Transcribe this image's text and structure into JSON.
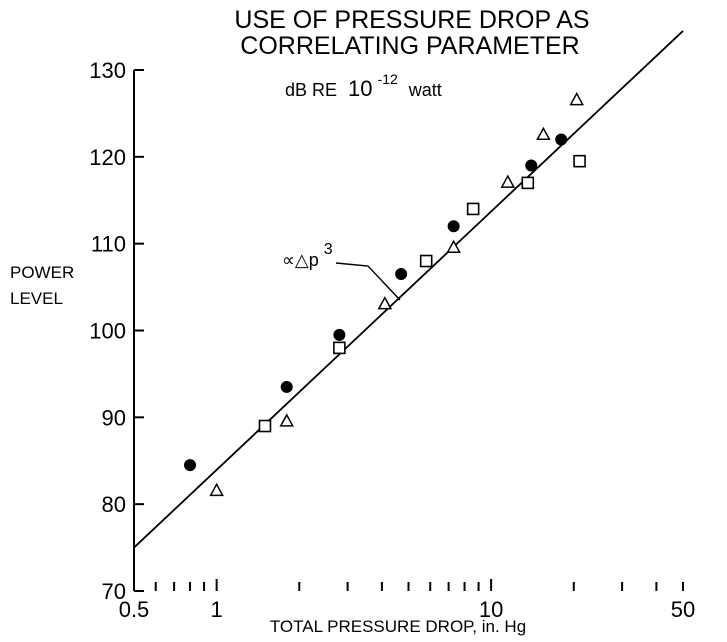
{
  "chart_data": {
    "type": "scatter",
    "title": "USE OF PRESSURE DROP AS",
    "subtitle": "CORRELATING PARAMETER",
    "units_label": {
      "prefix": "dB RE",
      "base": "10",
      "exponent": "-12",
      "suffix": "watt"
    },
    "ylabel": [
      "POWER",
      "LEVEL"
    ],
    "xlabel": "TOTAL PRESSURE DROP, in. Hg",
    "x_scale": "log",
    "xlim": [
      0.5,
      50
    ],
    "ylim": [
      70,
      130
    ],
    "x_tick_labels": [
      {
        "value": 0.5,
        "label": "0.5"
      },
      {
        "value": 1,
        "label": "1"
      },
      {
        "value": 10,
        "label": "10"
      },
      {
        "value": 50,
        "label": "50"
      }
    ],
    "y_ticks": [
      70,
      80,
      90,
      100,
      110,
      120,
      130
    ],
    "annotation": {
      "base": "∝△p",
      "exponent": "3"
    },
    "fit_line": {
      "x": [
        0.5,
        50
      ],
      "y": [
        75,
        134.5
      ]
    },
    "series": [
      {
        "marker": "filled-circle",
        "x": [
          0.8,
          1.8,
          2.8,
          4.7,
          7.3,
          14,
          18
        ],
        "y": [
          84.5,
          93.5,
          99.5,
          106.5,
          112,
          119,
          122
        ]
      },
      {
        "marker": "open-square",
        "x": [
          1.5,
          2.8,
          5.8,
          8.6,
          13.6,
          21
        ],
        "y": [
          89,
          98,
          108,
          114,
          117,
          119.5
        ]
      },
      {
        "marker": "open-triangle",
        "x": [
          1,
          1.8,
          4.1,
          7.3,
          11.5,
          15.5,
          20.5
        ],
        "y": [
          81.5,
          89.5,
          103,
          109.5,
          117,
          122.5,
          126.5
        ]
      }
    ]
  }
}
